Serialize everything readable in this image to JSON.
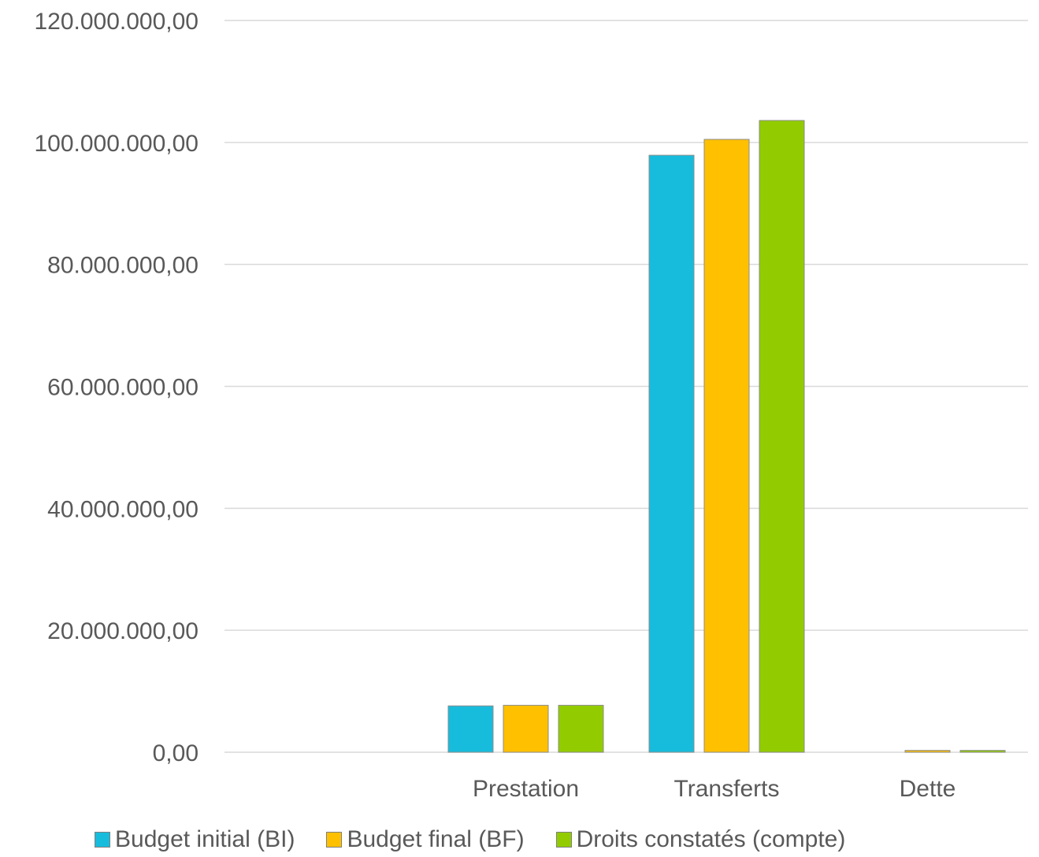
{
  "chart_data": {
    "type": "bar",
    "categories": [
      "",
      "Prestation",
      "Transferts",
      "Dette"
    ],
    "series": [
      {
        "name": "Budget initial (BI)",
        "color": "#17BCDC",
        "values": [
          0,
          7600000,
          97900000,
          0
        ]
      },
      {
        "name": "Budget final (BF)",
        "color": "#FFC000",
        "values": [
          0,
          7700000,
          100500000,
          300000
        ]
      },
      {
        "name": "Droits constatés (compte)",
        "color": "#92CC00",
        "values": [
          0,
          7700000,
          103600000,
          300000
        ]
      }
    ],
    "ylim": [
      0,
      120000000
    ],
    "yticks": [
      0,
      20000000,
      40000000,
      60000000,
      80000000,
      100000000,
      120000000
    ],
    "ytick_labels": [
      "0,00",
      "20.000.000,00",
      "40.000.000,00",
      "60.000.000,00",
      "80.000.000,00",
      "100.000.000,00",
      "120.000.000,00"
    ],
    "grid": true,
    "legend_position": "bottom",
    "title": "",
    "xlabel": "",
    "ylabel": ""
  }
}
